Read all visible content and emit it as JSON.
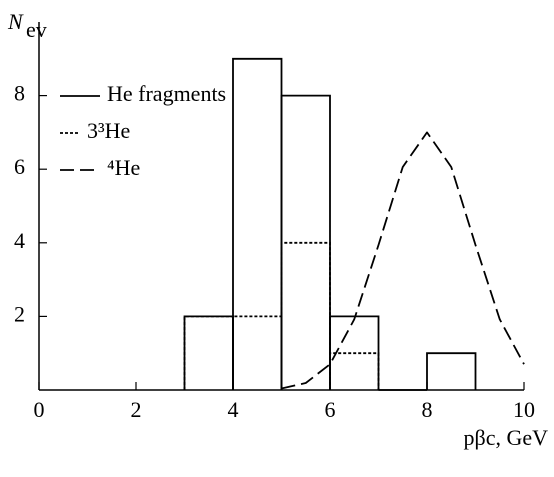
{
  "chart_data": {
    "type": "histogram",
    "ylabel": "N",
    "ylabel_sub": "ev",
    "xlabel": "pβc, GeV",
    "xlim": [
      0,
      10
    ],
    "xticks": [
      0,
      2,
      4,
      6,
      8,
      10
    ],
    "ylim": [
      0,
      10
    ],
    "yticks": [
      2,
      4,
      6,
      8
    ],
    "series": [
      {
        "name": "He fragments",
        "style": "solid",
        "color": "#000000",
        "bins": [
          3,
          4,
          5,
          6,
          7,
          8,
          9
        ],
        "values": [
          2,
          9,
          8,
          2,
          0,
          1
        ]
      },
      {
        "name": "3³He",
        "style": "dotted",
        "color": "#000000",
        "bins": [
          3,
          4,
          5,
          6,
          7
        ],
        "values": [
          2,
          2,
          4,
          1
        ]
      },
      {
        "name": "⁴He",
        "style": "dashed",
        "color": "#000000",
        "x": [
          5,
          5.5,
          6,
          6.5,
          7,
          7.5,
          8,
          8.5,
          9,
          9.5,
          10
        ],
        "values": [
          0.04,
          0.19,
          0.7,
          1.92,
          3.94,
          6.06,
          7,
          6.06,
          3.94,
          1.92,
          0.7
        ]
      }
    ]
  }
}
